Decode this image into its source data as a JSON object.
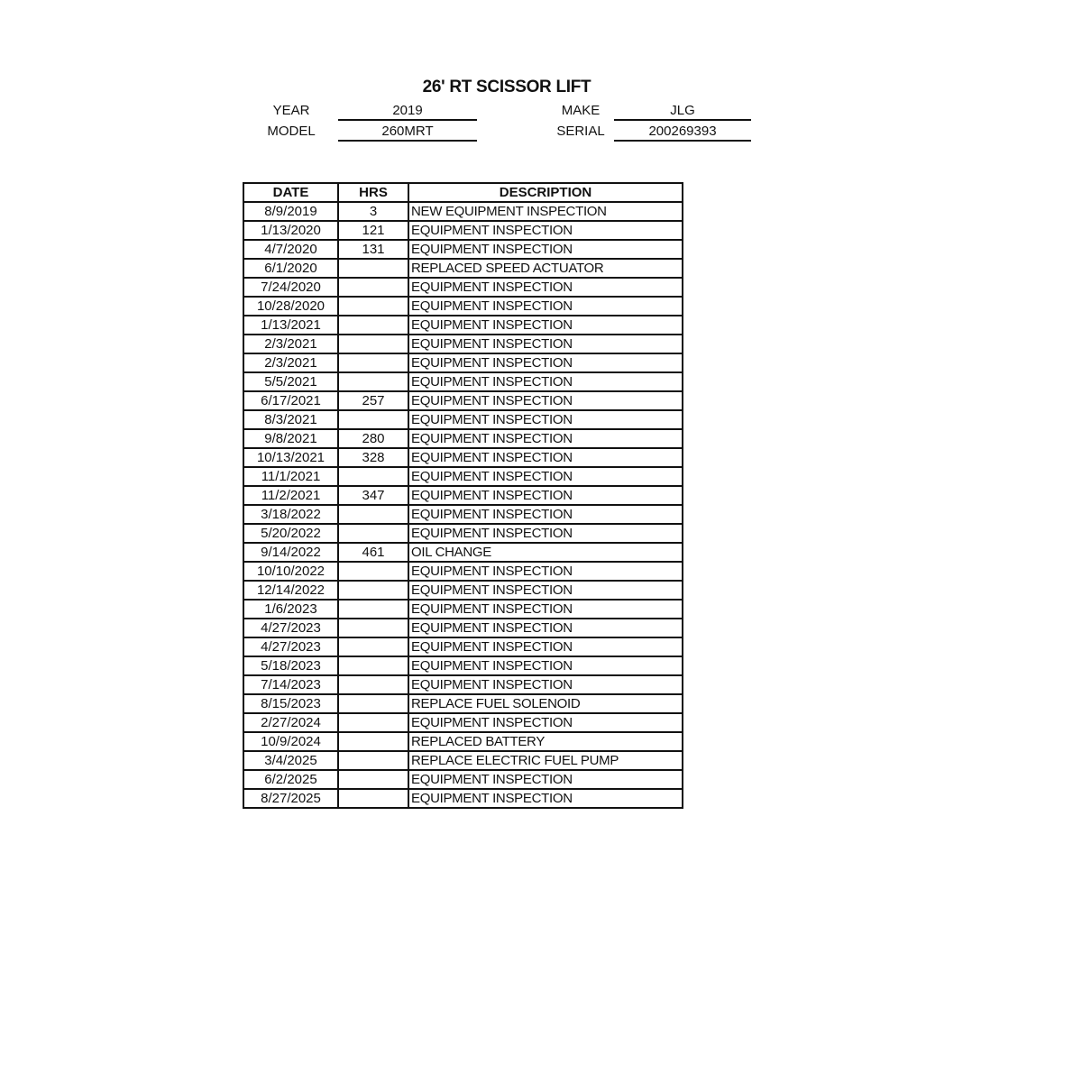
{
  "title": "26' RT SCISSOR LIFT",
  "info": {
    "year_label": "YEAR",
    "year": "2019",
    "make_label": "MAKE",
    "make": "JLG",
    "model_label": "MODEL",
    "model": "260MRT",
    "serial_label": "SERIAL",
    "serial": "200269393"
  },
  "table": {
    "headers": [
      "DATE",
      "HRS",
      "DESCRIPTION"
    ],
    "rows": [
      [
        "8/9/2019",
        "3",
        "NEW EQUIPMENT INSPECTION"
      ],
      [
        "1/13/2020",
        "121",
        "EQUIPMENT INSPECTION"
      ],
      [
        "4/7/2020",
        "131",
        "EQUIPMENT INSPECTION"
      ],
      [
        "6/1/2020",
        "",
        "REPLACED SPEED ACTUATOR"
      ],
      [
        "7/24/2020",
        "",
        "EQUIPMENT INSPECTION"
      ],
      [
        "10/28/2020",
        "",
        "EQUIPMENT INSPECTION"
      ],
      [
        "1/13/2021",
        "",
        "EQUIPMENT INSPECTION"
      ],
      [
        "2/3/2021",
        "",
        "EQUIPMENT INSPECTION"
      ],
      [
        "2/3/2021",
        "",
        "EQUIPMENT INSPECTION"
      ],
      [
        "5/5/2021",
        "",
        "EQUIPMENT INSPECTION"
      ],
      [
        "6/17/2021",
        "257",
        "EQUIPMENT INSPECTION"
      ],
      [
        "8/3/2021",
        "",
        "EQUIPMENT INSPECTION"
      ],
      [
        "9/8/2021",
        "280",
        "EQUIPMENT INSPECTION"
      ],
      [
        "10/13/2021",
        "328",
        "EQUIPMENT INSPECTION"
      ],
      [
        "11/1/2021",
        "",
        "EQUIPMENT INSPECTION"
      ],
      [
        "11/2/2021",
        "347",
        "EQUIPMENT INSPECTION"
      ],
      [
        "3/18/2022",
        "",
        "EQUIPMENT INSPECTION"
      ],
      [
        "5/20/2022",
        "",
        "EQUIPMENT INSPECTION"
      ],
      [
        "9/14/2022",
        "461",
        "OIL CHANGE"
      ],
      [
        "10/10/2022",
        "",
        "EQUIPMENT INSPECTION"
      ],
      [
        "12/14/2022",
        "",
        "EQUIPMENT INSPECTION"
      ],
      [
        "1/6/2023",
        "",
        "EQUIPMENT INSPECTION"
      ],
      [
        "4/27/2023",
        "",
        "EQUIPMENT INSPECTION"
      ],
      [
        "4/27/2023",
        "",
        "EQUIPMENT INSPECTION"
      ],
      [
        "5/18/2023",
        "",
        "EQUIPMENT INSPECTION"
      ],
      [
        "7/14/2023",
        "",
        "EQUIPMENT INSPECTION"
      ],
      [
        "8/15/2023",
        "",
        "REPLACE FUEL SOLENOID"
      ],
      [
        "2/27/2024",
        "",
        "EQUIPMENT INSPECTION"
      ],
      [
        "10/9/2024",
        "",
        "REPLACED BATTERY"
      ],
      [
        "3/4/2025",
        "",
        "REPLACE ELECTRIC FUEL PUMP"
      ],
      [
        "6/2/2025",
        "",
        "EQUIPMENT INSPECTION"
      ],
      [
        "8/27/2025",
        "",
        "EQUIPMENT INSPECTION"
      ]
    ]
  }
}
